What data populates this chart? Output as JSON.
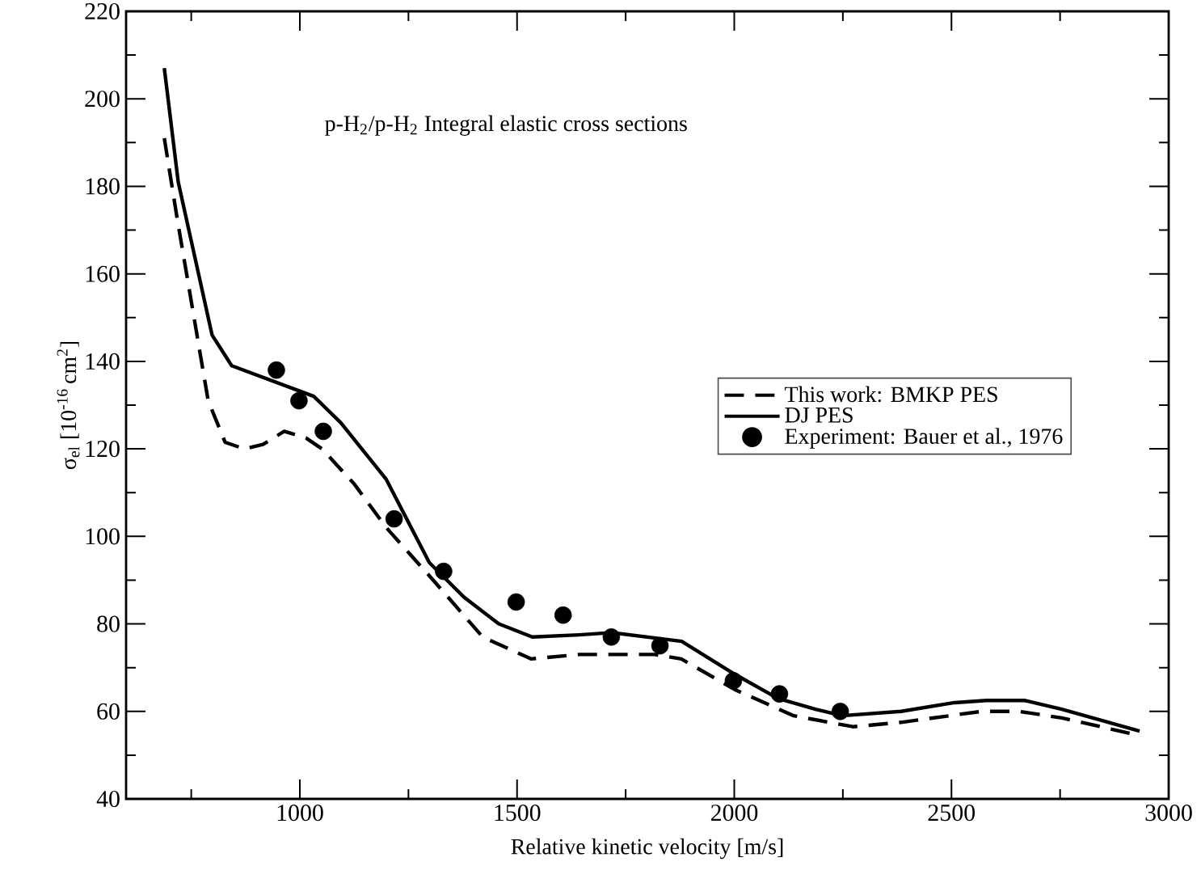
{
  "chart_data": {
    "type": "line",
    "xlabel": "Relative kinetic velocity [m/s]",
    "ylabel": "σ$_{el}$ [10$^{-16 }$cm$^{2}$]",
    "annotations": [
      "p-H$_{2}$/p-H$_{2}$  Integral elastic cross sections"
    ],
    "xlim": [
      600,
      3000
    ],
    "xticks": [
      {
        "value": 750,
        "label": null
      },
      1000,
      {
        "value": 1250,
        "label": null
      },
      1500,
      {
        "value": 1750,
        "label": null
      },
      2000,
      {
        "value": 2250,
        "label": null
      },
      2500,
      {
        "value": 2750,
        "label": null
      },
      3000
    ],
    "ylim": [
      40,
      220
    ],
    "yticks": [
      40,
      {
        "value": 50,
        "label": null
      },
      60,
      {
        "value": 70,
        "label": null
      },
      80,
      {
        "value": 90,
        "label": null
      },
      100,
      {
        "value": 110,
        "label": null
      },
      120,
      {
        "value": 130,
        "label": null
      },
      140,
      {
        "value": 150,
        "label": null
      },
      160,
      {
        "value": 170,
        "label": null
      },
      180,
      {
        "value": 190,
        "label": null
      },
      200,
      {
        "value": 210,
        "label": null
      },
      220
    ],
    "legend": "right",
    "series": [
      {
        "name": "This work:  BMKP   PES",
        "line_style": "dashed",
        "color": "#000000",
        "x": [
          688,
          717,
          789,
          828,
          872,
          915,
          964,
          1014,
          1051,
          1125,
          1199,
          1298,
          1421,
          1532,
          1643,
          1816,
          1878,
          2001,
          2137,
          2273,
          2384,
          2569,
          2656,
          2754,
          2933
        ],
        "values": [
          191,
          173,
          131,
          121.5,
          120,
          121,
          124,
          122.5,
          120,
          112,
          102,
          91,
          77,
          72,
          73,
          73,
          72,
          65,
          59,
          56.5,
          57.5,
          60,
          60,
          58.5,
          54.5
        ]
      },
      {
        "name": "DJ   PES",
        "line_style": "solid",
        "color": "#000000",
        "x": [
          688,
          720,
          798,
          843,
          1032,
          1094,
          1199,
          1298,
          1379,
          1458,
          1535,
          1643,
          1717,
          1879,
          2001,
          2100,
          2187,
          2248,
          2384,
          2507,
          2581,
          2668,
          2754,
          2933
        ],
        "values": [
          207,
          181,
          146,
          139,
          132,
          126,
          113,
          94,
          86,
          80,
          77,
          77.5,
          78,
          76,
          68.5,
          63,
          60.5,
          59,
          60,
          62,
          62.5,
          62.5,
          60.5,
          55.5
        ]
      },
      {
        "name": "Experiment: Bauer et al., 1976",
        "type": "scatter",
        "marker": "circle",
        "color": "#000000",
        "x": [
          946,
          998,
          1054,
          1217,
          1331,
          1498,
          1606,
          1717,
          1829,
          1998,
          2104,
          2244
        ],
        "values": [
          138,
          131,
          124,
          104,
          92,
          85,
          82,
          77,
          75,
          67,
          64,
          60
        ]
      }
    ]
  }
}
